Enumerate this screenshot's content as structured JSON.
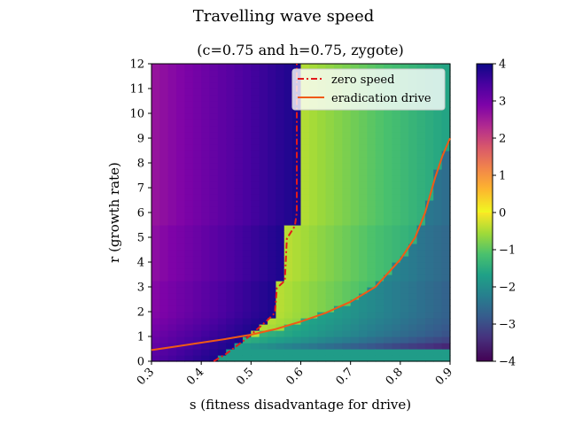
{
  "chart_data": {
    "type": "heatmap",
    "title": "Travelling wave speed",
    "subtitle": "(c=0.75 and h=0.75, zygote)",
    "xlabel": "s (fitness disadvantage for drive)",
    "ylabel": "r (growth rate)",
    "xlim": [
      0.3,
      0.9
    ],
    "ylim": [
      0,
      12
    ],
    "x_ticks": [
      "0.3",
      "0.4",
      "0.5",
      "0.6",
      "0.7",
      "0.8",
      "0.9"
    ],
    "y_ticks": [
      "0",
      "1",
      "2",
      "3",
      "4",
      "5",
      "6",
      "7",
      "8",
      "9",
      "10",
      "11",
      "12"
    ],
    "colorbar": {
      "range": [
        -4,
        4
      ],
      "ticks": [
        "4",
        "3",
        "2",
        "1",
        "0",
        "−1",
        "−2",
        "−3",
        "−4"
      ],
      "colormap": "plasma for positive speeds, viridis for negative speeds"
    },
    "grid": false,
    "legend": {
      "position": "top-right",
      "entries": [
        "zero speed",
        "eradication drive"
      ]
    },
    "series": [
      {
        "name": "zero speed",
        "style": "dash-dot",
        "color": "#e31a1c",
        "x": [
          0.425,
          0.45,
          0.47,
          0.49,
          0.51,
          0.53,
          0.548,
          0.552,
          0.568,
          0.572,
          0.588,
          0.592,
          0.592
        ],
        "y": [
          0.0,
          0.3,
          0.6,
          0.9,
          1.25,
          1.6,
          1.95,
          2.95,
          3.25,
          4.95,
          5.45,
          6.0,
          12.0
        ]
      },
      {
        "name": "eradication drive",
        "style": "solid",
        "color": "#f05a16",
        "x": [
          0.3,
          0.35,
          0.4,
          0.45,
          0.5,
          0.55,
          0.6,
          0.65,
          0.7,
          0.75,
          0.8,
          0.83,
          0.85,
          0.87,
          0.885,
          0.9
        ],
        "y": [
          0.45,
          0.6,
          0.75,
          0.9,
          1.07,
          1.3,
          1.6,
          1.95,
          2.4,
          3.0,
          4.1,
          5.0,
          6.0,
          7.4,
          8.3,
          9.0
        ]
      }
    ]
  }
}
